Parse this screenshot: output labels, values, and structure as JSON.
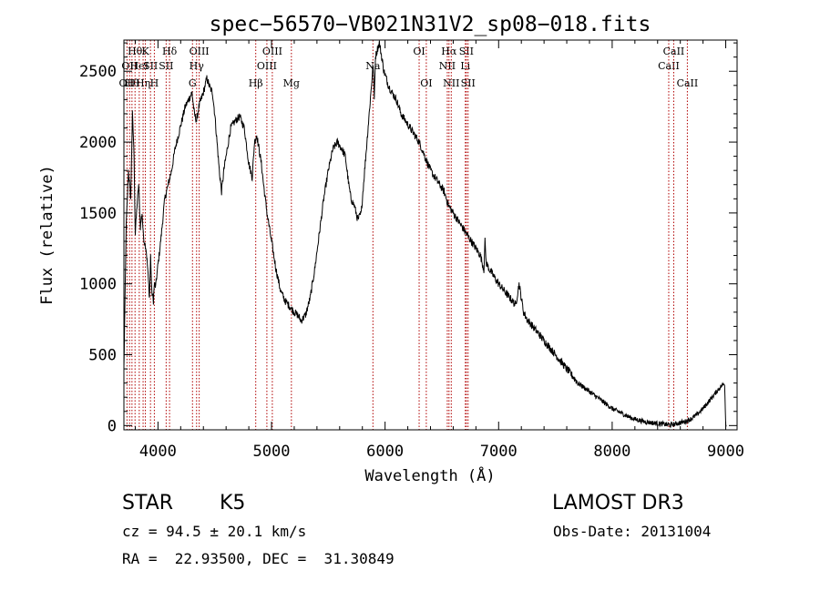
{
  "chart_data": {
    "type": "line",
    "title": "spec−56570−VB021N31V2_sp08−018.fits",
    "xlabel": "Wavelength (Å)",
    "ylabel": "Flux (relative)",
    "xlim": [
      3700,
      9100
    ],
    "ylim": [
      -30,
      2720
    ],
    "xticks": [
      4000,
      5000,
      6000,
      7000,
      8000,
      9000
    ],
    "yticks": [
      0,
      500,
      1000,
      1500,
      2000,
      2500
    ],
    "spectrum": {
      "x": [
        3700,
        3720,
        3740,
        3760,
        3775,
        3790,
        3800,
        3815,
        3830,
        3845,
        3860,
        3870,
        3880,
        3895,
        3910,
        3925,
        3935,
        3945,
        3960,
        3968,
        3980,
        3995,
        4010,
        4030,
        4060,
        4090,
        4120,
        4150,
        4180,
        4210,
        4240,
        4270,
        4300,
        4320,
        4340,
        4360,
        4380,
        4400,
        4430,
        4460,
        4480,
        4500,
        4520,
        4540,
        4560,
        4580,
        4610,
        4640,
        4680,
        4720,
        4760,
        4800,
        4830,
        4850,
        4870,
        4890,
        4910,
        4930,
        4960,
        5000,
        5040,
        5080,
        5120,
        5150,
        5180,
        5200,
        5230,
        5260,
        5300,
        5340,
        5380,
        5420,
        5460,
        5500,
        5540,
        5580,
        5620,
        5650,
        5680,
        5700,
        5730,
        5760,
        5790,
        5820,
        5840,
        5860,
        5880,
        5895,
        5905,
        5915,
        5930,
        5950,
        5970,
        5990,
        6010,
        6030,
        6060,
        6100,
        6140,
        6180,
        6220,
        6260,
        6300,
        6350,
        6400,
        6440,
        6480,
        6520,
        6560,
        6600,
        6640,
        6680,
        6720,
        6760,
        6800,
        6840,
        6870,
        6880,
        6890,
        6920,
        6960,
        7000,
        7050,
        7100,
        7150,
        7180,
        7200,
        7220,
        7250,
        7300,
        7350,
        7400,
        7450,
        7500,
        7550,
        7600,
        7650,
        7700,
        7750,
        7800,
        7850,
        7900,
        7950,
        8000,
        8050,
        8100,
        8150,
        8200,
        8250,
        8300,
        8350,
        8400,
        8450,
        8500,
        8550,
        8600,
        8650,
        8700,
        8750,
        8800,
        8850,
        8900,
        8950,
        8990,
        9000,
        9005
      ],
      "y": [
        400,
        1400,
        1800,
        1600,
        2200,
        1900,
        1350,
        1550,
        1700,
        1400,
        1500,
        1350,
        1300,
        1250,
        1100,
        900,
        1200,
        950,
        880,
        1000,
        980,
        1100,
        1200,
        1350,
        1600,
        1700,
        1800,
        1950,
        2050,
        2150,
        2250,
        2300,
        2350,
        2200,
        2150,
        2250,
        2300,
        2350,
        2450,
        2380,
        2350,
        2200,
        2000,
        1800,
        1650,
        1800,
        1950,
        2100,
        2150,
        2180,
        2100,
        1850,
        1750,
        2000,
        2050,
        1950,
        1850,
        1700,
        1500,
        1300,
        1100,
        950,
        880,
        850,
        820,
        800,
        780,
        740,
        780,
        900,
        1100,
        1350,
        1600,
        1800,
        1950,
        2000,
        1950,
        1900,
        1700,
        1600,
        1550,
        1450,
        1500,
        1800,
        2000,
        2200,
        2400,
        2550,
        2300,
        2600,
        2650,
        2700,
        2600,
        2500,
        2450,
        2400,
        2350,
        2300,
        2200,
        2150,
        2100,
        2050,
        2000,
        1900,
        1800,
        1750,
        1700,
        1650,
        1550,
        1500,
        1450,
        1400,
        1350,
        1300,
        1250,
        1200,
        1100,
        1300,
        1150,
        1100,
        1050,
        1000,
        950,
        900,
        850,
        1000,
        900,
        800,
        750,
        700,
        650,
        600,
        550,
        500,
        450,
        400,
        350,
        300,
        270,
        240,
        210,
        180,
        150,
        120,
        100,
        80,
        60,
        45,
        35,
        25,
        20,
        15,
        10,
        5,
        10,
        20,
        30,
        50,
        80,
        120,
        170,
        220,
        270,
        300,
        20,
        0
      ]
    },
    "lines": [
      {
        "w": 3727,
        "row": 2,
        "label": "OII"
      },
      {
        "w": 3750,
        "row": 1,
        "label": "OII"
      },
      {
        "w": 3771,
        "row": 2,
        "label": "Hθ"
      },
      {
        "w": 3798,
        "row": 0,
        "label": "Hθ"
      },
      {
        "w": 3835,
        "row": 1,
        "label": "HeI"
      },
      {
        "w": 3869,
        "row": 2,
        "label": "Hη"
      },
      {
        "w": 3889,
        "row": 0,
        "label": "K"
      },
      {
        "w": 3934,
        "row": 1,
        "label": "SII"
      },
      {
        "w": 3968,
        "row": 2,
        "label": "H"
      },
      {
        "w": 4072,
        "row": 1,
        "label": "SII"
      },
      {
        "w": 4102,
        "row": 0,
        "label": "Hδ"
      },
      {
        "w": 4304,
        "row": 2,
        "label": "G"
      },
      {
        "w": 4340,
        "row": 1,
        "label": "Hγ"
      },
      {
        "w": 4363,
        "row": 0,
        "label": "OIII"
      },
      {
        "w": 4861,
        "row": 2,
        "label": "Hβ"
      },
      {
        "w": 4959,
        "row": 1,
        "label": "OIII"
      },
      {
        "w": 5007,
        "row": 0,
        "label": "OIII"
      },
      {
        "w": 5175,
        "row": 2,
        "label": "Mg"
      },
      {
        "w": 5893,
        "row": 1,
        "label": "Na"
      },
      {
        "w": 6300,
        "row": 0,
        "label": "OI"
      },
      {
        "w": 6363,
        "row": 2,
        "label": "OI"
      },
      {
        "w": 6548,
        "row": 1,
        "label": "NII"
      },
      {
        "w": 6563,
        "row": 0,
        "label": "Hα"
      },
      {
        "w": 6583,
        "row": 2,
        "label": "NII"
      },
      {
        "w": 6707,
        "row": 1,
        "label": "Li"
      },
      {
        "w": 6716,
        "row": 0,
        "label": "SII"
      },
      {
        "w": 6731,
        "row": 2,
        "label": "SII"
      },
      {
        "w": 8498,
        "row": 1,
        "label": "CaII"
      },
      {
        "w": 8542,
        "row": 0,
        "label": "CaII"
      },
      {
        "w": 8662,
        "row": 2,
        "label": "CaII"
      }
    ]
  },
  "footer": {
    "object_class": "STAR",
    "subclass": "K5",
    "cz": "cz = 94.5 ± 20.1 km/s",
    "coords": "RA =  22.93500, DEC =  31.30849",
    "survey": "LAMOST DR3",
    "obs_date": "Obs-Date: 20131004"
  }
}
